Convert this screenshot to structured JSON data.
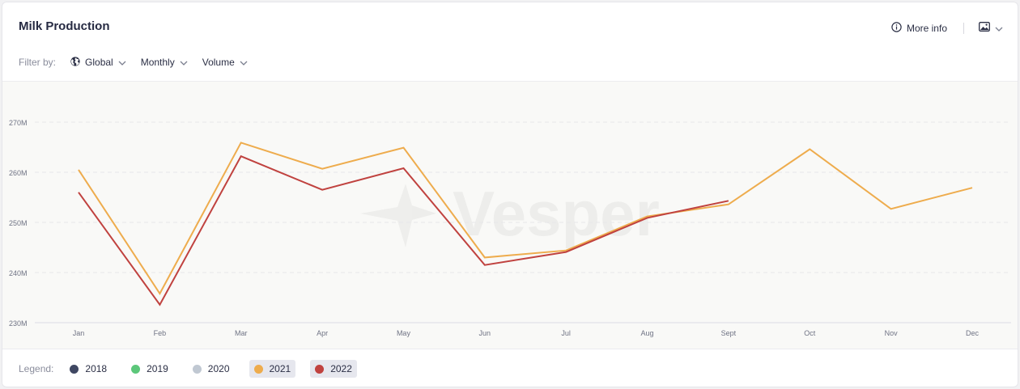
{
  "header": {
    "title": "Milk Production",
    "more_info_label": "More info"
  },
  "filters": {
    "label": "Filter by:",
    "region": "Global",
    "period": "Monthly",
    "metric": "Volume"
  },
  "legend": {
    "label": "Legend:",
    "items": [
      {
        "name": "2018",
        "color": "#3f4762",
        "active": false
      },
      {
        "name": "2019",
        "color": "#5cc77a",
        "active": false
      },
      {
        "name": "2020",
        "color": "#c0c8d2",
        "active": false
      },
      {
        "name": "2021",
        "color": "#eeac4d",
        "active": true
      },
      {
        "name": "2022",
        "color": "#c0423f",
        "active": true
      }
    ]
  },
  "watermark": "Vesper",
  "chart_data": {
    "type": "line",
    "title": "Milk Production",
    "xlabel": "",
    "ylabel": "",
    "categories": [
      "Jan",
      "Feb",
      "Mar",
      "Apr",
      "May",
      "Jun",
      "Jul",
      "Aug",
      "Sept",
      "Oct",
      "Nov",
      "Dec"
    ],
    "ylim": [
      230,
      270
    ],
    "yticks": [
      230,
      240,
      250,
      260,
      270
    ],
    "ytick_labels": [
      "230M",
      "240M",
      "250M",
      "260M",
      "270M"
    ],
    "grid": true,
    "legend_position": "bottom",
    "series": [
      {
        "name": "2021",
        "color": "#eeac4d",
        "values": [
          260.5,
          235.8,
          265.9,
          260.7,
          264.9,
          243.0,
          244.4,
          251.2,
          253.6,
          264.6,
          252.7,
          256.9
        ]
      },
      {
        "name": "2022",
        "color": "#c0423f",
        "values": [
          256.0,
          233.6,
          263.2,
          256.5,
          260.8,
          241.5,
          244.1,
          250.9,
          254.3,
          null,
          null,
          null
        ]
      }
    ]
  }
}
